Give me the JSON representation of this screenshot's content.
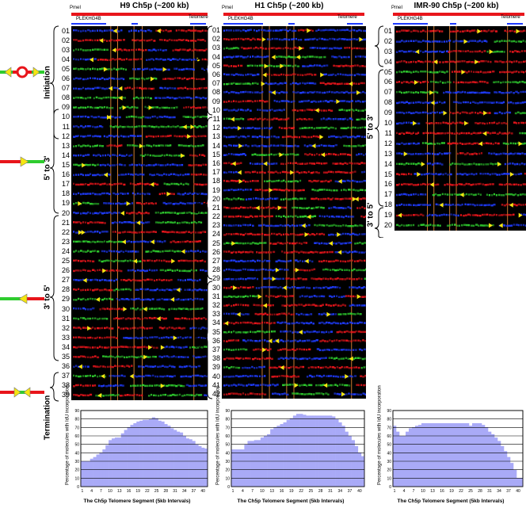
{
  "panels": [
    {
      "id": "h9",
      "title": "H9 Ch5p (~200 kb)",
      "pmel": "PmeI",
      "gene": "PLEKHG4B",
      "telomere": "Telomere",
      "rows": [
        "01",
        "02",
        "03",
        "04",
        "05",
        "06",
        "07",
        "08",
        "09",
        "10",
        "11",
        "12",
        "13",
        "14",
        "15",
        "16",
        "17",
        "18",
        "19",
        "20",
        "21",
        "22",
        "23",
        "24",
        "25",
        "26",
        "27",
        "28",
        "29",
        "30",
        "31",
        "32",
        "33",
        "34",
        "35",
        "36",
        "37",
        "38",
        "39"
      ]
    },
    {
      "id": "h1",
      "title": "H1 Ch5p (~200 kb)",
      "pmel": "PmeI",
      "gene": "PLEKHG4B",
      "telomere": "Telomere",
      "rows": [
        "01",
        "02",
        "03",
        "04",
        "05",
        "06",
        "07",
        "08",
        "09",
        "10",
        "11",
        "12",
        "13",
        "14",
        "15",
        "16",
        "17",
        "18",
        "19",
        "20",
        "21",
        "22",
        "23",
        "24",
        "25",
        "26",
        "27",
        "28",
        "29",
        "30",
        "31",
        "32",
        "33",
        "34",
        "35",
        "36",
        "37",
        "38",
        "39",
        "40",
        "41",
        "42"
      ]
    },
    {
      "id": "imr",
      "title": "IMR-90 Ch5p (~200 kb)",
      "pmel": "PmeI",
      "gene": "PLEKHG4B",
      "telomere": "Telomere",
      "rows": [
        "01",
        "02",
        "03",
        "04",
        "05",
        "06",
        "07",
        "08",
        "09",
        "10",
        "11",
        "12",
        "13",
        "14",
        "15",
        "16",
        "17",
        "18",
        "19",
        "20"
      ]
    }
  ],
  "categories": {
    "initiation": "Initiation",
    "five_to_three": "5' to 3'",
    "three_to_five": "3' to 5'",
    "termination": "Termination"
  },
  "colors": {
    "red": "#e8151b",
    "blue": "#1f3cff",
    "green": "#2ecc2e",
    "yellow": "#f5e611",
    "bar": "#a9aaf7"
  },
  "icons": [
    "initiation-symbol-icon",
    "five-to-three-symbol-icon",
    "three-to-five-symbol-icon",
    "termination-symbol-icon"
  ],
  "chart_data": [
    {
      "type": "bar",
      "xlabel": "The Ch5p Telomere Segment (5kb Intervals)",
      "ylabel": "Percentage of molecules with IdU incorporation",
      "ylim": [
        0,
        90
      ],
      "yticks": [
        0,
        10,
        20,
        30,
        40,
        50,
        60,
        70,
        80,
        90
      ],
      "xticks": [
        "1",
        "4",
        "7",
        "10",
        "13",
        "16",
        "19",
        "22",
        "25",
        "28",
        "31",
        "34",
        "37",
        "40"
      ],
      "categories": [
        1,
        2,
        3,
        4,
        5,
        6,
        7,
        8,
        9,
        10,
        11,
        12,
        13,
        14,
        15,
        16,
        17,
        18,
        19,
        20,
        21,
        22,
        23,
        24,
        25,
        26,
        27,
        28,
        29,
        30,
        31,
        32,
        33,
        34,
        35,
        36,
        37,
        38,
        39,
        40,
        41
      ],
      "values": [
        30,
        30,
        30,
        33,
        35,
        38,
        40,
        44,
        49,
        55,
        57,
        58,
        58,
        63,
        67,
        70,
        73,
        75,
        77,
        78,
        79,
        79,
        80,
        82,
        81,
        78,
        77,
        74,
        72,
        69,
        67,
        65,
        64,
        60,
        57,
        56,
        54,
        50,
        48,
        46,
        45
      ]
    },
    {
      "type": "bar",
      "xlabel": "The Ch5p Telomere Segment (5kb Intervals)",
      "ylabel": "Percentage of molecules with IdU incorporation",
      "ylim": [
        0,
        90
      ],
      "yticks": [
        0,
        10,
        20,
        30,
        40,
        50,
        60,
        70,
        80,
        90
      ],
      "xticks": [
        "1",
        "4",
        "7",
        "10",
        "13",
        "16",
        "19",
        "22",
        "25",
        "28",
        "31",
        "34",
        "37",
        "40"
      ],
      "categories": [
        1,
        2,
        3,
        4,
        5,
        6,
        7,
        8,
        9,
        10,
        11,
        12,
        13,
        14,
        15,
        16,
        17,
        18,
        19,
        20,
        21,
        22,
        23,
        24,
        25,
        26,
        27,
        28,
        29,
        30,
        31,
        32,
        33,
        34,
        35,
        36,
        37,
        38,
        39,
        40,
        41
      ],
      "values": [
        44,
        44,
        44,
        44,
        50,
        54,
        54,
        55,
        55,
        58,
        60,
        62,
        68,
        70,
        72,
        74,
        76,
        79,
        81,
        84,
        86,
        86,
        85,
        84,
        84,
        84,
        84,
        84,
        84,
        84,
        84,
        83,
        80,
        76,
        72,
        65,
        60,
        55,
        48,
        40,
        36
      ]
    },
    {
      "type": "bar",
      "xlabel": "The Ch5p Telomere Segment (5kb Intervals)",
      "ylabel": "Percentage of molecules with IdU incorporation",
      "ylim": [
        0,
        90
      ],
      "yticks": [
        0,
        10,
        20,
        30,
        40,
        50,
        60,
        70,
        80,
        90
      ],
      "xticks": [
        "1",
        "4",
        "7",
        "10",
        "13",
        "16",
        "19",
        "22",
        "25",
        "28",
        "31",
        "34",
        "37",
        "40"
      ],
      "categories": [
        1,
        2,
        3,
        4,
        5,
        6,
        7,
        8,
        9,
        10,
        11,
        12,
        13,
        14,
        15,
        16,
        17,
        18,
        19,
        20,
        21,
        22,
        23,
        24,
        25,
        26,
        27,
        28,
        29,
        30,
        31,
        32,
        33,
        34,
        35,
        36,
        37,
        38,
        39,
        40,
        41
      ],
      "values": [
        72,
        65,
        60,
        60,
        65,
        69,
        70,
        72,
        73,
        75,
        75,
        75,
        75,
        75,
        75,
        75,
        75,
        75,
        75,
        75,
        75,
        75,
        75,
        75,
        72,
        75,
        75,
        75,
        73,
        70,
        65,
        62,
        58,
        54,
        48,
        42,
        35,
        28,
        20,
        10,
        10
      ]
    }
  ]
}
